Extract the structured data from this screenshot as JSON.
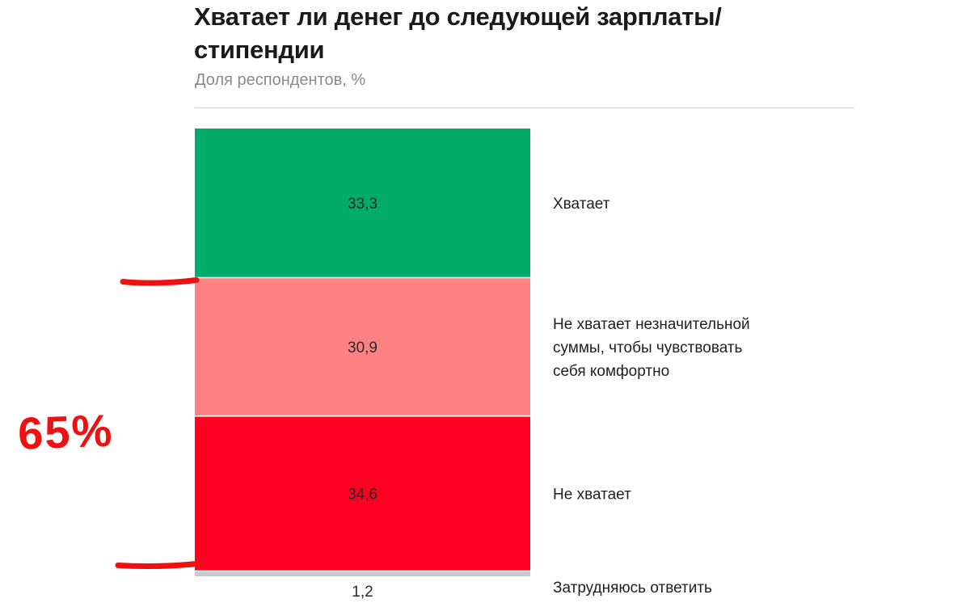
{
  "chart_data": {
    "type": "bar",
    "orientation": "stacked-vertical",
    "title": "Хватает ли денег до следующей зарплаты/ стипендии",
    "subtitle": "Доля респондентов, %",
    "categories": [
      "Хватает",
      "Не хватает незначительной суммы, чтобы чувствовать себя комфортно",
      "Не хватает",
      "Затрудняюсь ответить"
    ],
    "label_lines": [
      [
        "Хватает"
      ],
      [
        "Не хватает незначительной",
        "суммы, чтобы чувствовать",
        "себя комфортно"
      ],
      [
        "Не хватает"
      ],
      [
        "Затрудняюсь ответить"
      ]
    ],
    "values": [
      33.3,
      30.9,
      34.6,
      1.2
    ],
    "value_labels": [
      "33,3",
      "30,9",
      "34,6",
      "1,2"
    ],
    "colors": [
      "#00ab6b",
      "#ff8283",
      "#ff0020",
      "#c9c9c9"
    ],
    "annotation": {
      "text": "65%",
      "color": "#ee1111"
    }
  }
}
